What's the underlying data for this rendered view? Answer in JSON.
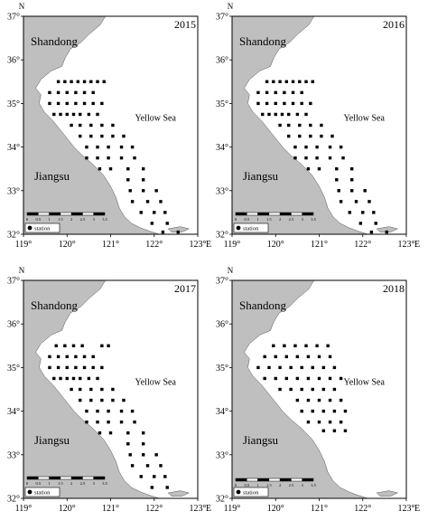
{
  "figure": {
    "north_label": "N",
    "east_label": "E",
    "lat_labels": [
      "37°",
      "36°",
      "35°",
      "34°",
      "33°",
      "32°"
    ],
    "lon_labels": [
      "119°",
      "120°",
      "121°",
      "122°",
      "123°"
    ],
    "lat_values": [
      37,
      36,
      35,
      34,
      33,
      32
    ],
    "lon_values": [
      119,
      120,
      121,
      122,
      123
    ],
    "land_color": "#bfbfbf",
    "sea_color": "#ffffff",
    "station_color": "#000000"
  },
  "panels": [
    {
      "year": "2015",
      "province_north": "Shandong",
      "province_south": "Jiangsu",
      "sea_label": "Yellow Sea",
      "legend_label": "station",
      "scale_ticks": [
        "0",
        "0.5",
        "1",
        "1.5",
        "2",
        "2.5",
        "3",
        "3.5"
      ],
      "stations": [
        [
          119.8,
          35.5
        ],
        [
          119.95,
          35.5
        ],
        [
          120.1,
          35.5
        ],
        [
          120.25,
          35.5
        ],
        [
          120.4,
          35.5
        ],
        [
          120.55,
          35.5
        ],
        [
          120.7,
          35.5
        ],
        [
          120.85,
          35.5
        ],
        [
          119.6,
          35.25
        ],
        [
          119.8,
          35.25
        ],
        [
          120.0,
          35.25
        ],
        [
          120.2,
          35.25
        ],
        [
          120.4,
          35.25
        ],
        [
          120.6,
          35.25
        ],
        [
          119.6,
          35.0
        ],
        [
          119.8,
          35.0
        ],
        [
          120.0,
          35.0
        ],
        [
          120.2,
          35.0
        ],
        [
          120.4,
          35.0
        ],
        [
          120.6,
          35.0
        ],
        [
          120.8,
          35.0
        ],
        [
          119.7,
          34.75
        ],
        [
          119.85,
          34.75
        ],
        [
          120.0,
          34.75
        ],
        [
          120.15,
          34.75
        ],
        [
          120.3,
          34.75
        ],
        [
          120.5,
          34.75
        ],
        [
          120.7,
          34.75
        ],
        [
          120.1,
          34.5
        ],
        [
          120.3,
          34.5
        ],
        [
          120.55,
          34.5
        ],
        [
          120.8,
          34.5
        ],
        [
          121.05,
          34.5
        ],
        [
          120.3,
          34.25
        ],
        [
          120.55,
          34.25
        ],
        [
          120.8,
          34.25
        ],
        [
          121.05,
          34.25
        ],
        [
          121.3,
          34.25
        ],
        [
          120.45,
          34.0
        ],
        [
          120.7,
          34.0
        ],
        [
          120.95,
          34.0
        ],
        [
          121.25,
          34.0
        ],
        [
          121.5,
          34.0
        ],
        [
          120.45,
          33.75
        ],
        [
          120.7,
          33.75
        ],
        [
          120.95,
          33.75
        ],
        [
          121.25,
          33.75
        ],
        [
          121.55,
          33.75
        ],
        [
          120.75,
          33.5
        ],
        [
          121.0,
          33.5
        ],
        [
          121.4,
          33.5
        ],
        [
          121.75,
          33.5
        ],
        [
          121.4,
          33.25
        ],
        [
          121.75,
          33.25
        ],
        [
          121.45,
          33.0
        ],
        [
          121.75,
          33.0
        ],
        [
          122.05,
          33.0
        ],
        [
          121.5,
          32.75
        ],
        [
          121.85,
          32.75
        ],
        [
          122.15,
          32.75
        ],
        [
          121.7,
          32.5
        ],
        [
          122.0,
          32.5
        ],
        [
          122.25,
          32.5
        ],
        [
          121.95,
          32.25
        ],
        [
          122.3,
          32.25
        ],
        [
          122.2,
          32.05
        ],
        [
          122.55,
          32.05
        ]
      ]
    },
    {
      "year": "2016",
      "province_north": "Shandong",
      "province_south": "Jiangsu",
      "sea_label": "Yellow Sea",
      "legend_label": "station",
      "scale_ticks": [
        "0",
        "0.5",
        "1",
        "1.5",
        "2",
        "2.5",
        "3",
        "3.5"
      ],
      "stations": [
        [
          119.8,
          35.5
        ],
        [
          119.95,
          35.5
        ],
        [
          120.1,
          35.5
        ],
        [
          120.25,
          35.5
        ],
        [
          120.4,
          35.5
        ],
        [
          120.55,
          35.5
        ],
        [
          120.7,
          35.5
        ],
        [
          120.85,
          35.5
        ],
        [
          119.6,
          35.25
        ],
        [
          119.8,
          35.25
        ],
        [
          120.0,
          35.25
        ],
        [
          120.2,
          35.25
        ],
        [
          120.4,
          35.25
        ],
        [
          120.6,
          35.25
        ],
        [
          119.6,
          35.0
        ],
        [
          119.8,
          35.0
        ],
        [
          120.0,
          35.0
        ],
        [
          120.2,
          35.0
        ],
        [
          120.4,
          35.0
        ],
        [
          120.6,
          35.0
        ],
        [
          120.8,
          35.0
        ],
        [
          119.7,
          34.75
        ],
        [
          119.85,
          34.75
        ],
        [
          120.0,
          34.75
        ],
        [
          120.15,
          34.75
        ],
        [
          120.3,
          34.75
        ],
        [
          120.5,
          34.75
        ],
        [
          120.7,
          34.75
        ],
        [
          120.1,
          34.5
        ],
        [
          120.3,
          34.5
        ],
        [
          120.55,
          34.5
        ],
        [
          120.8,
          34.5
        ],
        [
          121.05,
          34.5
        ],
        [
          120.3,
          34.25
        ],
        [
          120.55,
          34.25
        ],
        [
          120.8,
          34.25
        ],
        [
          121.05,
          34.25
        ],
        [
          121.3,
          34.25
        ],
        [
          120.45,
          34.0
        ],
        [
          120.7,
          34.0
        ],
        [
          120.95,
          34.0
        ],
        [
          121.25,
          34.0
        ],
        [
          121.5,
          34.0
        ],
        [
          120.45,
          33.75
        ],
        [
          120.7,
          33.75
        ],
        [
          120.95,
          33.75
        ],
        [
          121.25,
          33.75
        ],
        [
          121.55,
          33.75
        ],
        [
          120.75,
          33.5
        ],
        [
          121.0,
          33.5
        ],
        [
          121.4,
          33.5
        ],
        [
          121.75,
          33.5
        ],
        [
          121.4,
          33.25
        ],
        [
          121.75,
          33.25
        ],
        [
          121.45,
          33.0
        ],
        [
          121.75,
          33.0
        ],
        [
          122.05,
          33.0
        ],
        [
          121.5,
          32.75
        ],
        [
          121.85,
          32.75
        ],
        [
          122.15,
          32.75
        ],
        [
          121.7,
          32.5
        ],
        [
          122.0,
          32.5
        ],
        [
          122.25,
          32.5
        ],
        [
          121.95,
          32.25
        ],
        [
          122.3,
          32.25
        ],
        [
          122.2,
          32.05
        ],
        [
          122.55,
          32.05
        ]
      ]
    },
    {
      "year": "2017",
      "province_north": "Shandong",
      "province_south": "Jiangsu",
      "sea_label": "Yellow Sea",
      "legend_label": "station",
      "scale_ticks": [
        "0",
        "0.5",
        "1",
        "1.5",
        "2",
        "2.5",
        "3",
        "3.5"
      ],
      "stations": [
        [
          119.75,
          35.5
        ],
        [
          119.95,
          35.5
        ],
        [
          120.15,
          35.5
        ],
        [
          120.35,
          35.5
        ],
        [
          120.8,
          35.5
        ],
        [
          120.95,
          35.5
        ],
        [
          119.6,
          35.25
        ],
        [
          119.8,
          35.25
        ],
        [
          120.0,
          35.25
        ],
        [
          120.2,
          35.25
        ],
        [
          120.4,
          35.25
        ],
        [
          120.6,
          35.25
        ],
        [
          119.6,
          35.0
        ],
        [
          119.8,
          35.0
        ],
        [
          120.0,
          35.0
        ],
        [
          120.2,
          35.0
        ],
        [
          120.4,
          35.0
        ],
        [
          120.6,
          35.0
        ],
        [
          120.8,
          35.0
        ],
        [
          119.7,
          34.75
        ],
        [
          119.85,
          34.75
        ],
        [
          120.0,
          34.75
        ],
        [
          120.15,
          34.75
        ],
        [
          120.3,
          34.75
        ],
        [
          120.5,
          34.75
        ],
        [
          120.7,
          34.75
        ],
        [
          120.1,
          34.5
        ],
        [
          120.3,
          34.5
        ],
        [
          120.55,
          34.5
        ],
        [
          120.8,
          34.5
        ],
        [
          121.05,
          34.5
        ],
        [
          120.3,
          34.25
        ],
        [
          120.55,
          34.25
        ],
        [
          120.8,
          34.25
        ],
        [
          121.05,
          34.25
        ],
        [
          121.3,
          34.25
        ],
        [
          120.45,
          34.0
        ],
        [
          120.7,
          34.0
        ],
        [
          120.95,
          34.0
        ],
        [
          121.25,
          34.0
        ],
        [
          121.5,
          34.0
        ],
        [
          120.45,
          33.75
        ],
        [
          120.7,
          33.75
        ],
        [
          120.95,
          33.75
        ],
        [
          121.25,
          33.75
        ],
        [
          121.55,
          33.75
        ],
        [
          120.75,
          33.5
        ],
        [
          121.0,
          33.5
        ],
        [
          121.4,
          33.5
        ],
        [
          121.75,
          33.5
        ],
        [
          121.4,
          33.25
        ],
        [
          121.75,
          33.25
        ],
        [
          121.45,
          33.0
        ],
        [
          121.75,
          33.0
        ],
        [
          122.05,
          33.0
        ],
        [
          121.5,
          32.75
        ],
        [
          121.85,
          32.75
        ],
        [
          122.15,
          32.75
        ],
        [
          121.7,
          32.5
        ],
        [
          122.0,
          32.5
        ],
        [
          122.25,
          32.5
        ],
        [
          121.95,
          32.25
        ],
        [
          122.3,
          32.25
        ]
      ]
    },
    {
      "year": "2018",
      "province_north": "Shandong",
      "province_south": "Jiangsu",
      "sea_label": "Yellow Sea",
      "legend_label": "station",
      "scale_ticks": [
        "0",
        "0.5",
        "1",
        "1.5",
        "2",
        "2.5",
        "3",
        "3.5"
      ],
      "stations": [
        [
          119.95,
          35.5
        ],
        [
          120.2,
          35.5
        ],
        [
          120.45,
          35.5
        ],
        [
          120.7,
          35.5
        ],
        [
          120.95,
          35.5
        ],
        [
          121.2,
          35.5
        ],
        [
          119.75,
          35.25
        ],
        [
          120.0,
          35.25
        ],
        [
          120.25,
          35.25
        ],
        [
          120.5,
          35.25
        ],
        [
          120.75,
          35.25
        ],
        [
          121.0,
          35.25
        ],
        [
          121.25,
          35.25
        ],
        [
          119.6,
          35.0
        ],
        [
          119.85,
          35.0
        ],
        [
          120.1,
          35.0
        ],
        [
          120.35,
          35.0
        ],
        [
          120.6,
          35.0
        ],
        [
          120.85,
          35.0
        ],
        [
          121.1,
          35.0
        ],
        [
          121.35,
          35.0
        ],
        [
          119.75,
          34.75
        ],
        [
          120.0,
          34.75
        ],
        [
          120.25,
          34.75
        ],
        [
          120.5,
          34.75
        ],
        [
          120.75,
          34.75
        ],
        [
          121.0,
          34.75
        ],
        [
          121.25,
          34.75
        ],
        [
          121.5,
          34.75
        ],
        [
          120.1,
          34.5
        ],
        [
          120.35,
          34.5
        ],
        [
          120.6,
          34.5
        ],
        [
          120.85,
          34.5
        ],
        [
          121.1,
          34.5
        ],
        [
          121.35,
          34.5
        ],
        [
          120.5,
          34.25
        ],
        [
          120.75,
          34.25
        ],
        [
          121.0,
          34.25
        ],
        [
          121.25,
          34.25
        ],
        [
          121.5,
          34.25
        ],
        [
          120.6,
          34.0
        ],
        [
          120.85,
          34.0
        ],
        [
          121.1,
          34.0
        ],
        [
          121.35,
          34.0
        ],
        [
          121.6,
          34.0
        ],
        [
          120.75,
          33.75
        ],
        [
          121.0,
          33.75
        ],
        [
          121.25,
          33.75
        ],
        [
          121.5,
          33.75
        ],
        [
          121.1,
          33.55
        ],
        [
          121.35,
          33.55
        ],
        [
          121.6,
          33.55
        ]
      ]
    }
  ]
}
